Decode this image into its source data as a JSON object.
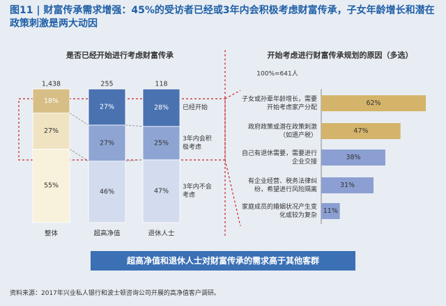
{
  "header": {
    "title": "图11 | 财富传承需求增强：45%的受访者已经或3年内会积极考虑财富传承，子女年龄增长和潜在政策刺激是两大动因"
  },
  "chart_data": [
    {
      "type": "bar",
      "stacked": true,
      "title": "是否已经开始进行考虑财富传承",
      "categories": [
        "整体",
        "超高净值",
        "退休人士"
      ],
      "sample_sizes": [
        "1,438",
        "255",
        "118"
      ],
      "ylim": [
        0,
        100
      ],
      "series": [
        {
          "name": "3年内不会考虑",
          "colors": [
            "#f8f1dc",
            "#d3dbee",
            "#d3dbee"
          ],
          "values": [
            55,
            46,
            47
          ],
          "value_labels": [
            "55%",
            "46%",
            "47%"
          ]
        },
        {
          "name": "3年内会积极考虑",
          "colors": [
            "#efe3c2",
            "#8ea5d3",
            "#8ea5d3"
          ],
          "values": [
            27,
            27,
            25
          ],
          "value_labels": [
            "27%",
            "27%",
            "25%"
          ]
        },
        {
          "name": "已经开始",
          "colors": [
            "#d6be86",
            "#4a72b1",
            "#4a72b1"
          ],
          "values": [
            18,
            27,
            28
          ],
          "value_labels": [
            "18%",
            "27%",
            "28%"
          ]
        }
      ]
    },
    {
      "type": "bar",
      "orientation": "horizontal",
      "title": "开始考虑进行财富传承规划的原因（多选）",
      "subtitle": "100%=641人",
      "categories": [
        "子女或孙辈年龄增长，需要开始考虑家产分配",
        "政府政策或潜在政策刺激（如遗产税）",
        "自己有退休需要，需要进行企业交接",
        "有企业经营、税务法律纠纷，希望进行风险隔离",
        "家庭成员的婚姻状况产生变化或较为复杂"
      ],
      "values": [
        62,
        47,
        38,
        31,
        11
      ],
      "value_labels": [
        "62%",
        "47%",
        "38%",
        "31%",
        "11%"
      ],
      "colors": [
        "#d4b46a",
        "#d4b46a",
        "#8c9fd2",
        "#8c9fd2",
        "#8c9fd2"
      ],
      "xlim": [
        0,
        100
      ]
    }
  ],
  "banner": "超高净值和退休人士对财富传承的需求高于其他客群",
  "source": "资料来源：2017年兴业私人银行和波士顿咨询公司开展的高净值客户调研。"
}
